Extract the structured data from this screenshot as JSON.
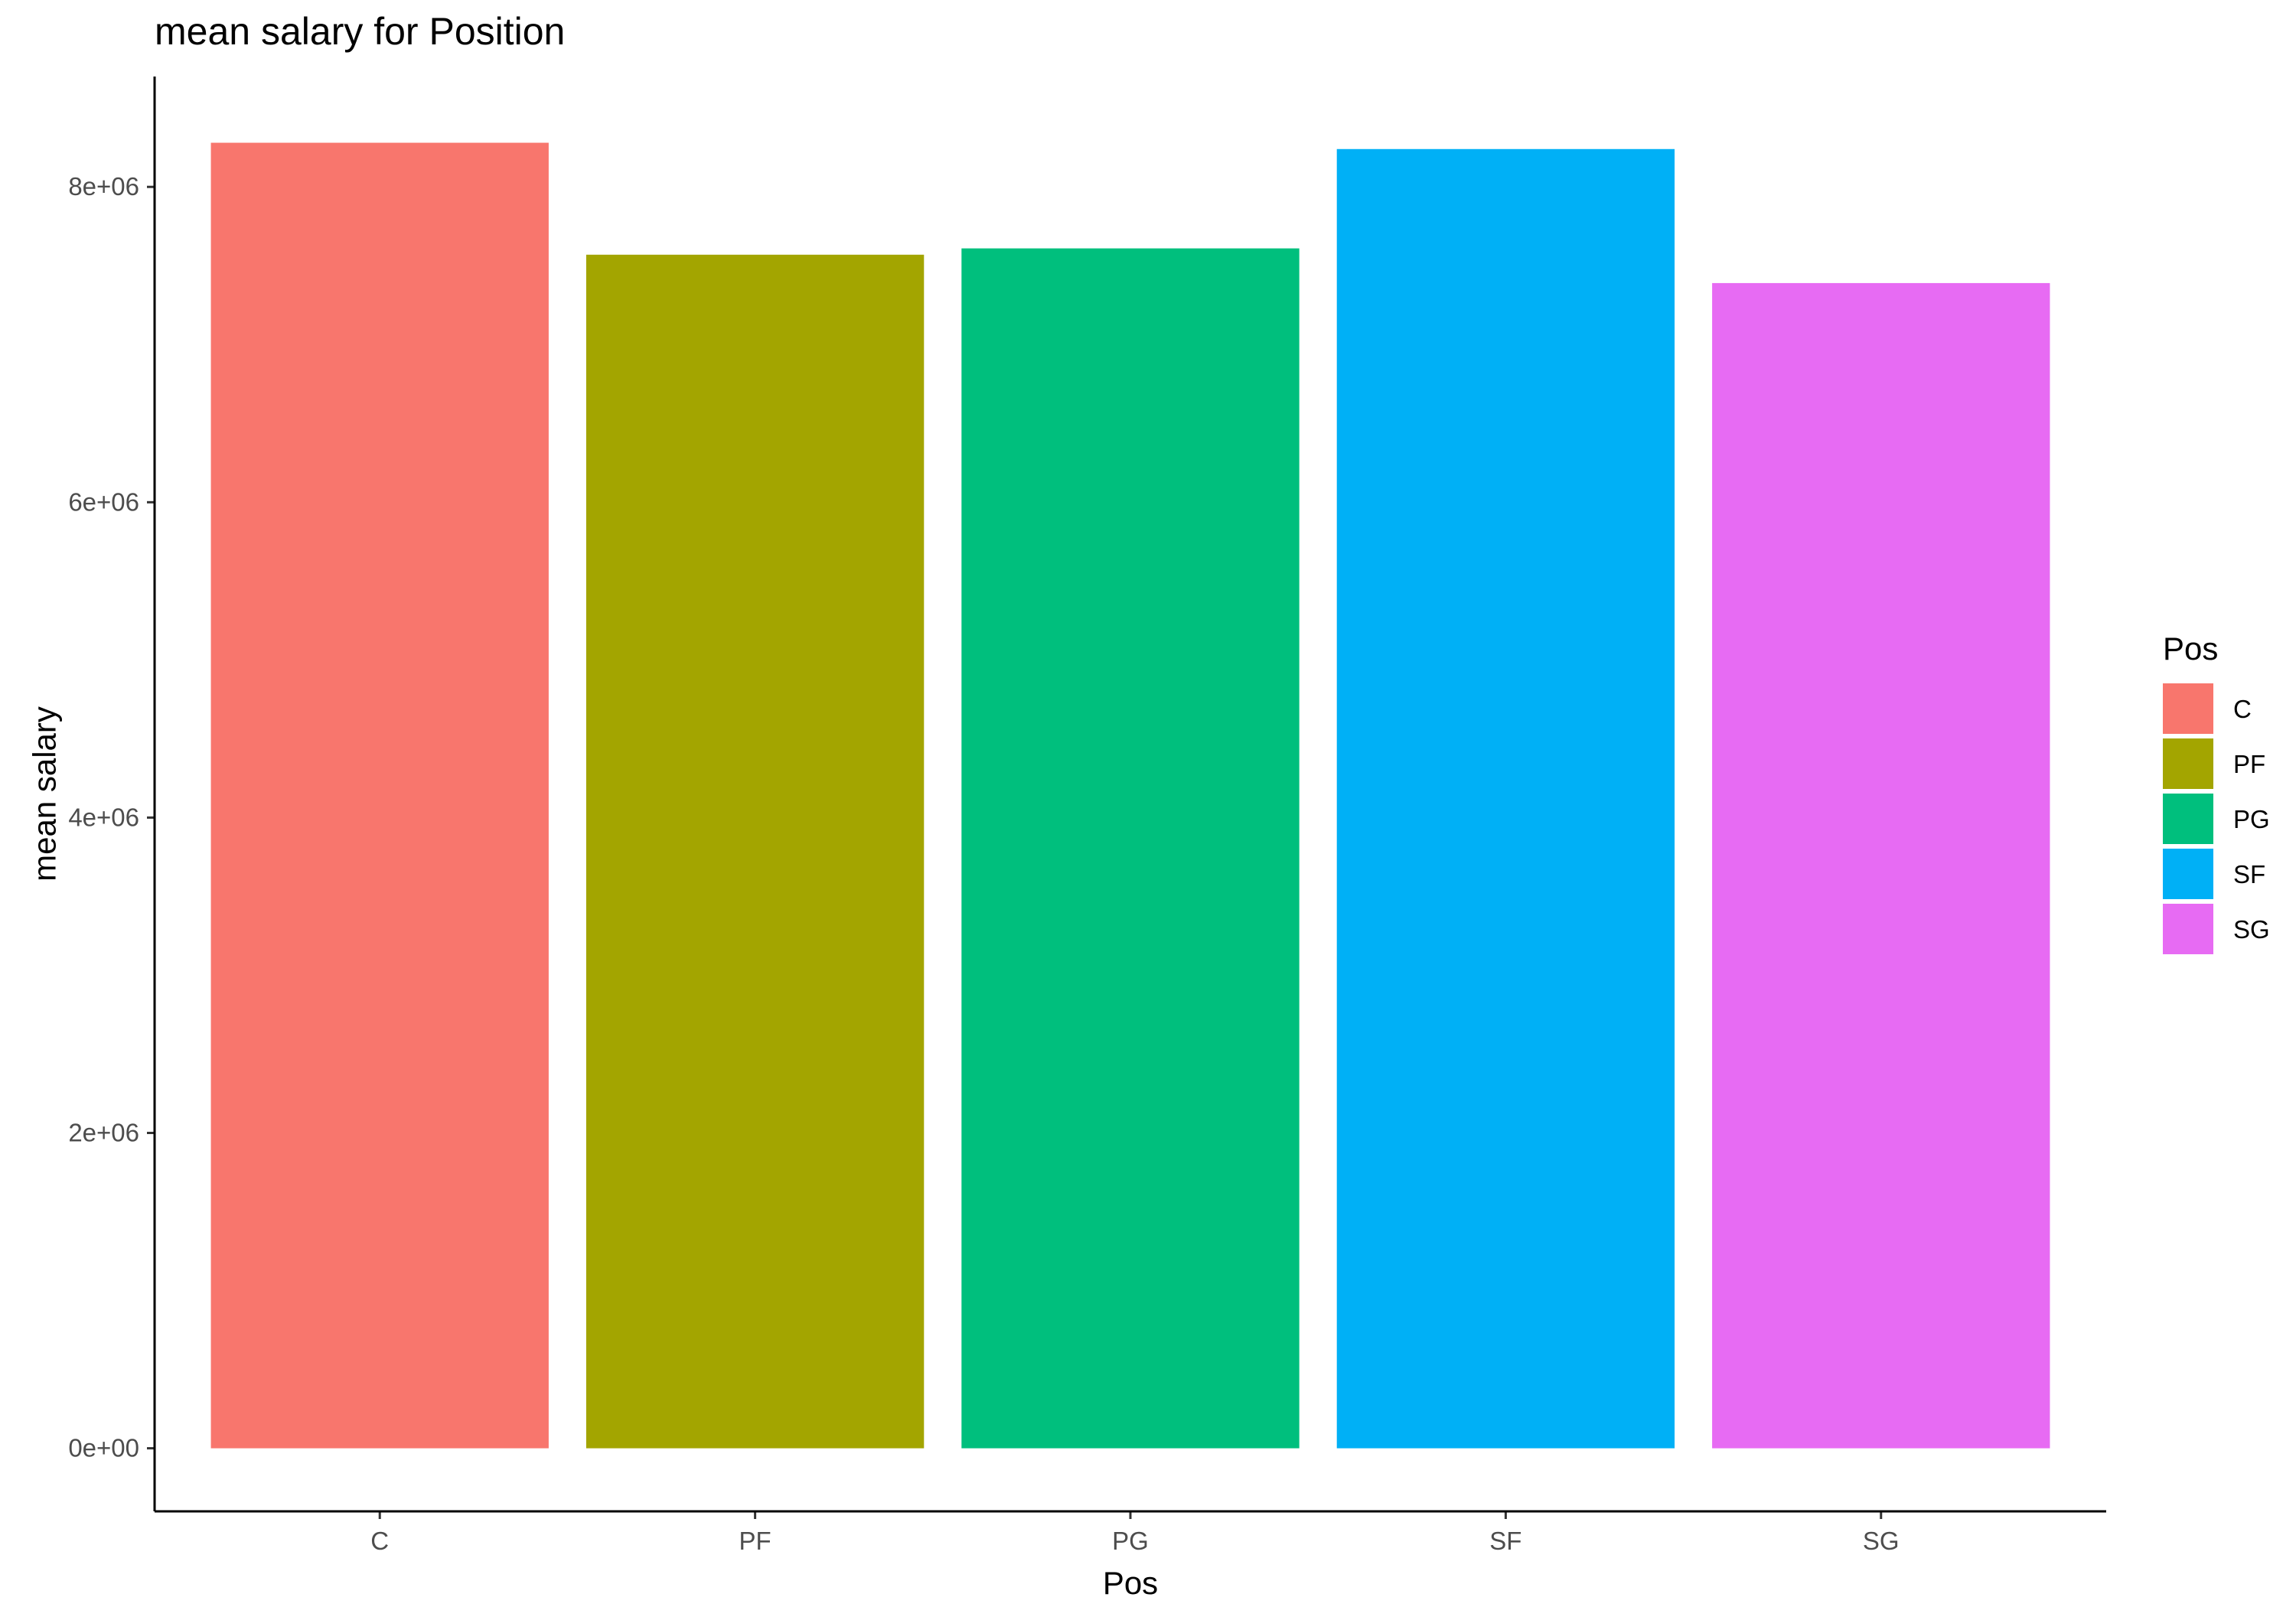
{
  "chart_data": {
    "type": "bar",
    "title": "mean salary for Position",
    "xlabel": "Pos",
    "ylabel": "mean salary",
    "categories": [
      "C",
      "PF",
      "PG",
      "SF",
      "SG"
    ],
    "values": [
      8280000,
      7570000,
      7610000,
      8240000,
      7390000
    ],
    "colors": [
      "#F8766D",
      "#A3A500",
      "#00BF7D",
      "#00B0F6",
      "#E76BF3"
    ],
    "ylim": [
      -400000,
      8700000
    ],
    "yticks": [
      0,
      2000000,
      4000000,
      6000000,
      8000000
    ],
    "ytick_labels": [
      "0e+00",
      "2e+06",
      "4e+06",
      "6e+06",
      "8e+06"
    ],
    "grid": false,
    "legend": {
      "title": "Pos",
      "position": "right",
      "entries": [
        "C",
        "PF",
        "PG",
        "SF",
        "SG"
      ]
    }
  }
}
